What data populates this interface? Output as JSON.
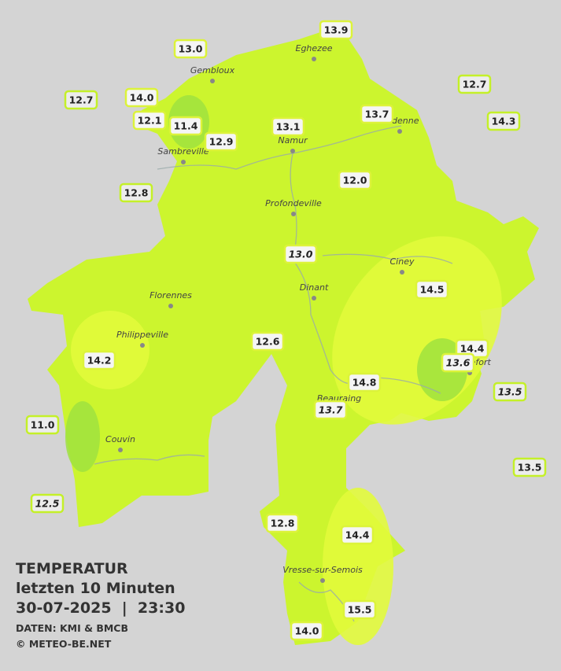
{
  "title": {
    "line1": "TEMPERATUR",
    "line2": "letzten 10 Minuten",
    "line3": "30-07-2025  |  23:30",
    "source": "DATEN: KMI & BMCB",
    "copyright": "© METEO-BE.NET"
  },
  "cities": [
    "Eghezee",
    "Gembloux",
    "Andenne",
    "Namur",
    "Sambreville",
    "Profondeville",
    "Ciney",
    "Dinant",
    "Florennes",
    "Philippeville",
    "Rochefort",
    "Beauraing",
    "Couvin",
    "Vresse-sur-Semois"
  ],
  "stations": [
    "13.9",
    "13.0",
    "12.7",
    "14.0",
    "12.1",
    "11.4",
    "12.9",
    "13.1",
    "13.7",
    "12.7",
    "14.3",
    "12.8",
    "12.0",
    "13.0",
    "14.5",
    "12.6",
    "14.2",
    "14.4",
    "13.6",
    "14.8",
    "13.5",
    "13.7",
    "11.0",
    "13.5",
    "12.5",
    "12.8",
    "14.4",
    "15.5",
    "14.0"
  ]
}
